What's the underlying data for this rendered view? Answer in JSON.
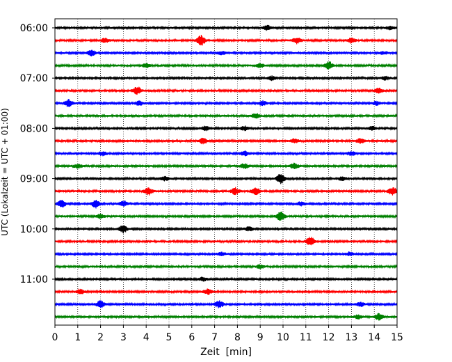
{
  "chart_data": {
    "type": "line",
    "title": "",
    "xlabel": "Zeit  [min]",
    "ylabel": "UTC (Lokalzeit = UTC + 01:00)",
    "xlim": [
      0,
      15
    ],
    "x_ticks": [
      "0",
      "1",
      "2",
      "3",
      "4",
      "5",
      "6",
      "7",
      "8",
      "9",
      "10",
      "11",
      "12",
      "13",
      "14",
      "15"
    ],
    "y_ticks": [
      "06:00",
      "07:00",
      "08:00",
      "09:00",
      "10:00",
      "11:00"
    ],
    "grid": "vertical dotted",
    "trace_colors": [
      "#000000",
      "#ff0000",
      "#0000ff",
      "#008000"
    ],
    "series": [
      {
        "start": "06:00",
        "events": [
          {
            "t": 9.3,
            "amp": 0.35
          },
          {
            "t": 14.7,
            "amp": 0.25
          }
        ]
      },
      {
        "start": "06:15",
        "events": [
          {
            "t": 2.2,
            "amp": 0.3
          },
          {
            "t": 6.4,
            "amp": 0.75
          },
          {
            "t": 10.6,
            "amp": 0.45
          },
          {
            "t": 13.0,
            "amp": 0.35
          }
        ]
      },
      {
        "start": "06:30",
        "events": [
          {
            "t": 1.6,
            "amp": 0.45
          },
          {
            "t": 7.3,
            "amp": 0.25
          },
          {
            "t": 14.4,
            "amp": 0.2
          }
        ]
      },
      {
        "start": "06:45",
        "events": [
          {
            "t": 4.0,
            "amp": 0.3
          },
          {
            "t": 9.0,
            "amp": 0.3
          },
          {
            "t": 12.0,
            "amp": 0.6
          }
        ]
      },
      {
        "start": "07:00",
        "events": [
          {
            "t": 9.5,
            "amp": 0.3
          },
          {
            "t": 14.5,
            "amp": 0.25
          }
        ]
      },
      {
        "start": "07:15",
        "events": [
          {
            "t": 3.6,
            "amp": 0.6
          },
          {
            "t": 14.2,
            "amp": 0.35
          }
        ]
      },
      {
        "start": "07:30",
        "events": [
          {
            "t": 0.6,
            "amp": 0.55
          },
          {
            "t": 3.7,
            "amp": 0.3
          },
          {
            "t": 9.1,
            "amp": 0.35
          },
          {
            "t": 14.1,
            "amp": 0.25
          }
        ]
      },
      {
        "start": "07:45",
        "events": [
          {
            "t": 8.8,
            "amp": 0.35
          }
        ]
      },
      {
        "start": "08:00",
        "events": [
          {
            "t": 6.6,
            "amp": 0.3
          },
          {
            "t": 8.3,
            "amp": 0.3
          },
          {
            "t": 13.9,
            "amp": 0.3
          }
        ]
      },
      {
        "start": "08:15",
        "events": [
          {
            "t": 6.5,
            "amp": 0.45
          },
          {
            "t": 10.5,
            "amp": 0.3
          },
          {
            "t": 13.4,
            "amp": 0.35
          }
        ]
      },
      {
        "start": "08:30",
        "events": [
          {
            "t": 2.1,
            "amp": 0.3
          },
          {
            "t": 8.3,
            "amp": 0.35
          },
          {
            "t": 13.0,
            "amp": 0.3
          }
        ]
      },
      {
        "start": "08:45",
        "events": [
          {
            "t": 1.0,
            "amp": 0.3
          },
          {
            "t": 8.3,
            "amp": 0.35
          },
          {
            "t": 10.5,
            "amp": 0.45
          }
        ]
      },
      {
        "start": "09:00",
        "events": [
          {
            "t": 4.8,
            "amp": 0.3
          },
          {
            "t": 9.9,
            "amp": 0.75
          },
          {
            "t": 12.6,
            "amp": 0.25
          }
        ]
      },
      {
        "start": "09:15",
        "events": [
          {
            "t": 4.1,
            "amp": 0.55
          },
          {
            "t": 7.9,
            "amp": 0.5
          },
          {
            "t": 8.8,
            "amp": 0.5
          },
          {
            "t": 14.8,
            "amp": 0.6
          }
        ]
      },
      {
        "start": "09:30",
        "events": [
          {
            "t": 0.3,
            "amp": 0.5
          },
          {
            "t": 1.8,
            "amp": 0.6
          },
          {
            "t": 3.0,
            "amp": 0.45
          },
          {
            "t": 10.8,
            "amp": 0.3
          }
        ]
      },
      {
        "start": "09:45",
        "events": [
          {
            "t": 2.0,
            "amp": 0.3
          },
          {
            "t": 9.9,
            "amp": 0.7
          }
        ]
      },
      {
        "start": "10:00",
        "events": [
          {
            "t": 3.0,
            "amp": 0.55
          },
          {
            "t": 8.5,
            "amp": 0.3
          }
        ]
      },
      {
        "start": "10:15",
        "events": [
          {
            "t": 11.2,
            "amp": 0.7
          }
        ]
      },
      {
        "start": "10:30",
        "events": [
          {
            "t": 7.3,
            "amp": 0.25
          },
          {
            "t": 12.9,
            "amp": 0.25
          }
        ]
      },
      {
        "start": "10:45",
        "events": [
          {
            "t": 9.0,
            "amp": 0.25
          }
        ]
      },
      {
        "start": "11:00",
        "events": [
          {
            "t": 6.5,
            "amp": 0.25
          }
        ]
      },
      {
        "start": "11:15",
        "events": [
          {
            "t": 1.1,
            "amp": 0.4
          },
          {
            "t": 6.7,
            "amp": 0.4
          }
        ]
      },
      {
        "start": "11:30",
        "events": [
          {
            "t": 2.0,
            "amp": 0.55
          },
          {
            "t": 7.2,
            "amp": 0.55
          },
          {
            "t": 13.4,
            "amp": 0.3
          }
        ]
      },
      {
        "start": "11:45",
        "events": [
          {
            "t": 13.3,
            "amp": 0.3
          },
          {
            "t": 14.2,
            "amp": 0.45
          }
        ]
      }
    ]
  }
}
